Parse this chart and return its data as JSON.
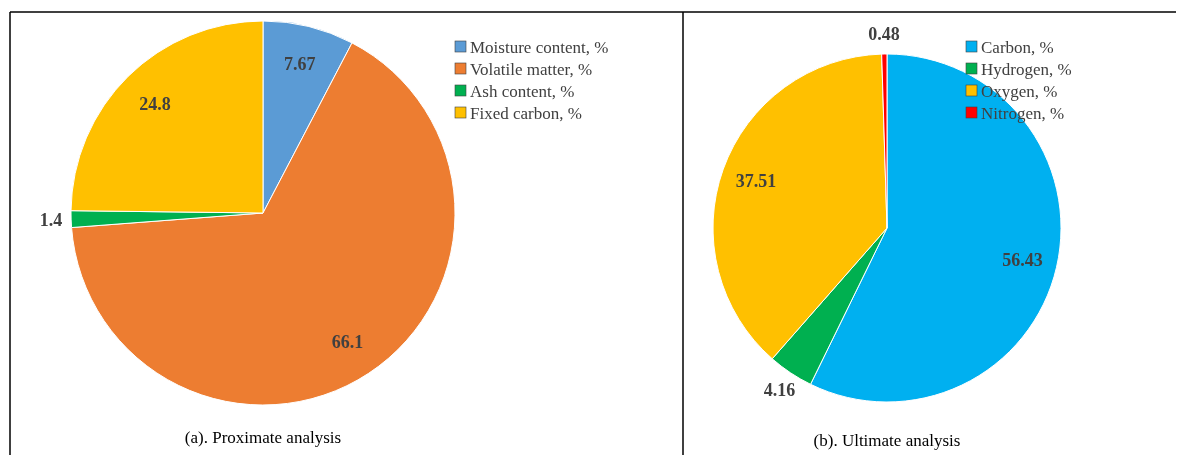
{
  "chart_data": [
    {
      "type": "pie",
      "categories": [
        "Moisture content, %",
        "Volatile matter, %",
        "Ash content, %",
        "Fixed carbon, %"
      ],
      "values": [
        7.67,
        66.1,
        1.4,
        24.8
      ],
      "colors": [
        "#5b9bd5",
        "#ed7d31",
        "#00b050",
        "#ffc000"
      ],
      "data_labels": true,
      "legend": "top right",
      "annotations": [
        "(a). Proximate analysis"
      ]
    },
    {
      "type": "pie",
      "categories": [
        "Carbon, %",
        "Hydrogen, %",
        "Oxygen, %",
        "Nitrogen, %"
      ],
      "values": [
        56.43,
        4.16,
        37.51,
        0.48
      ],
      "colors": [
        "#00b0f0",
        "#00b050",
        "#ffc000",
        "#ff0000"
      ],
      "data_labels": true,
      "legend": "top right",
      "annotations": [
        "(b). Ultimate analysis"
      ]
    }
  ]
}
